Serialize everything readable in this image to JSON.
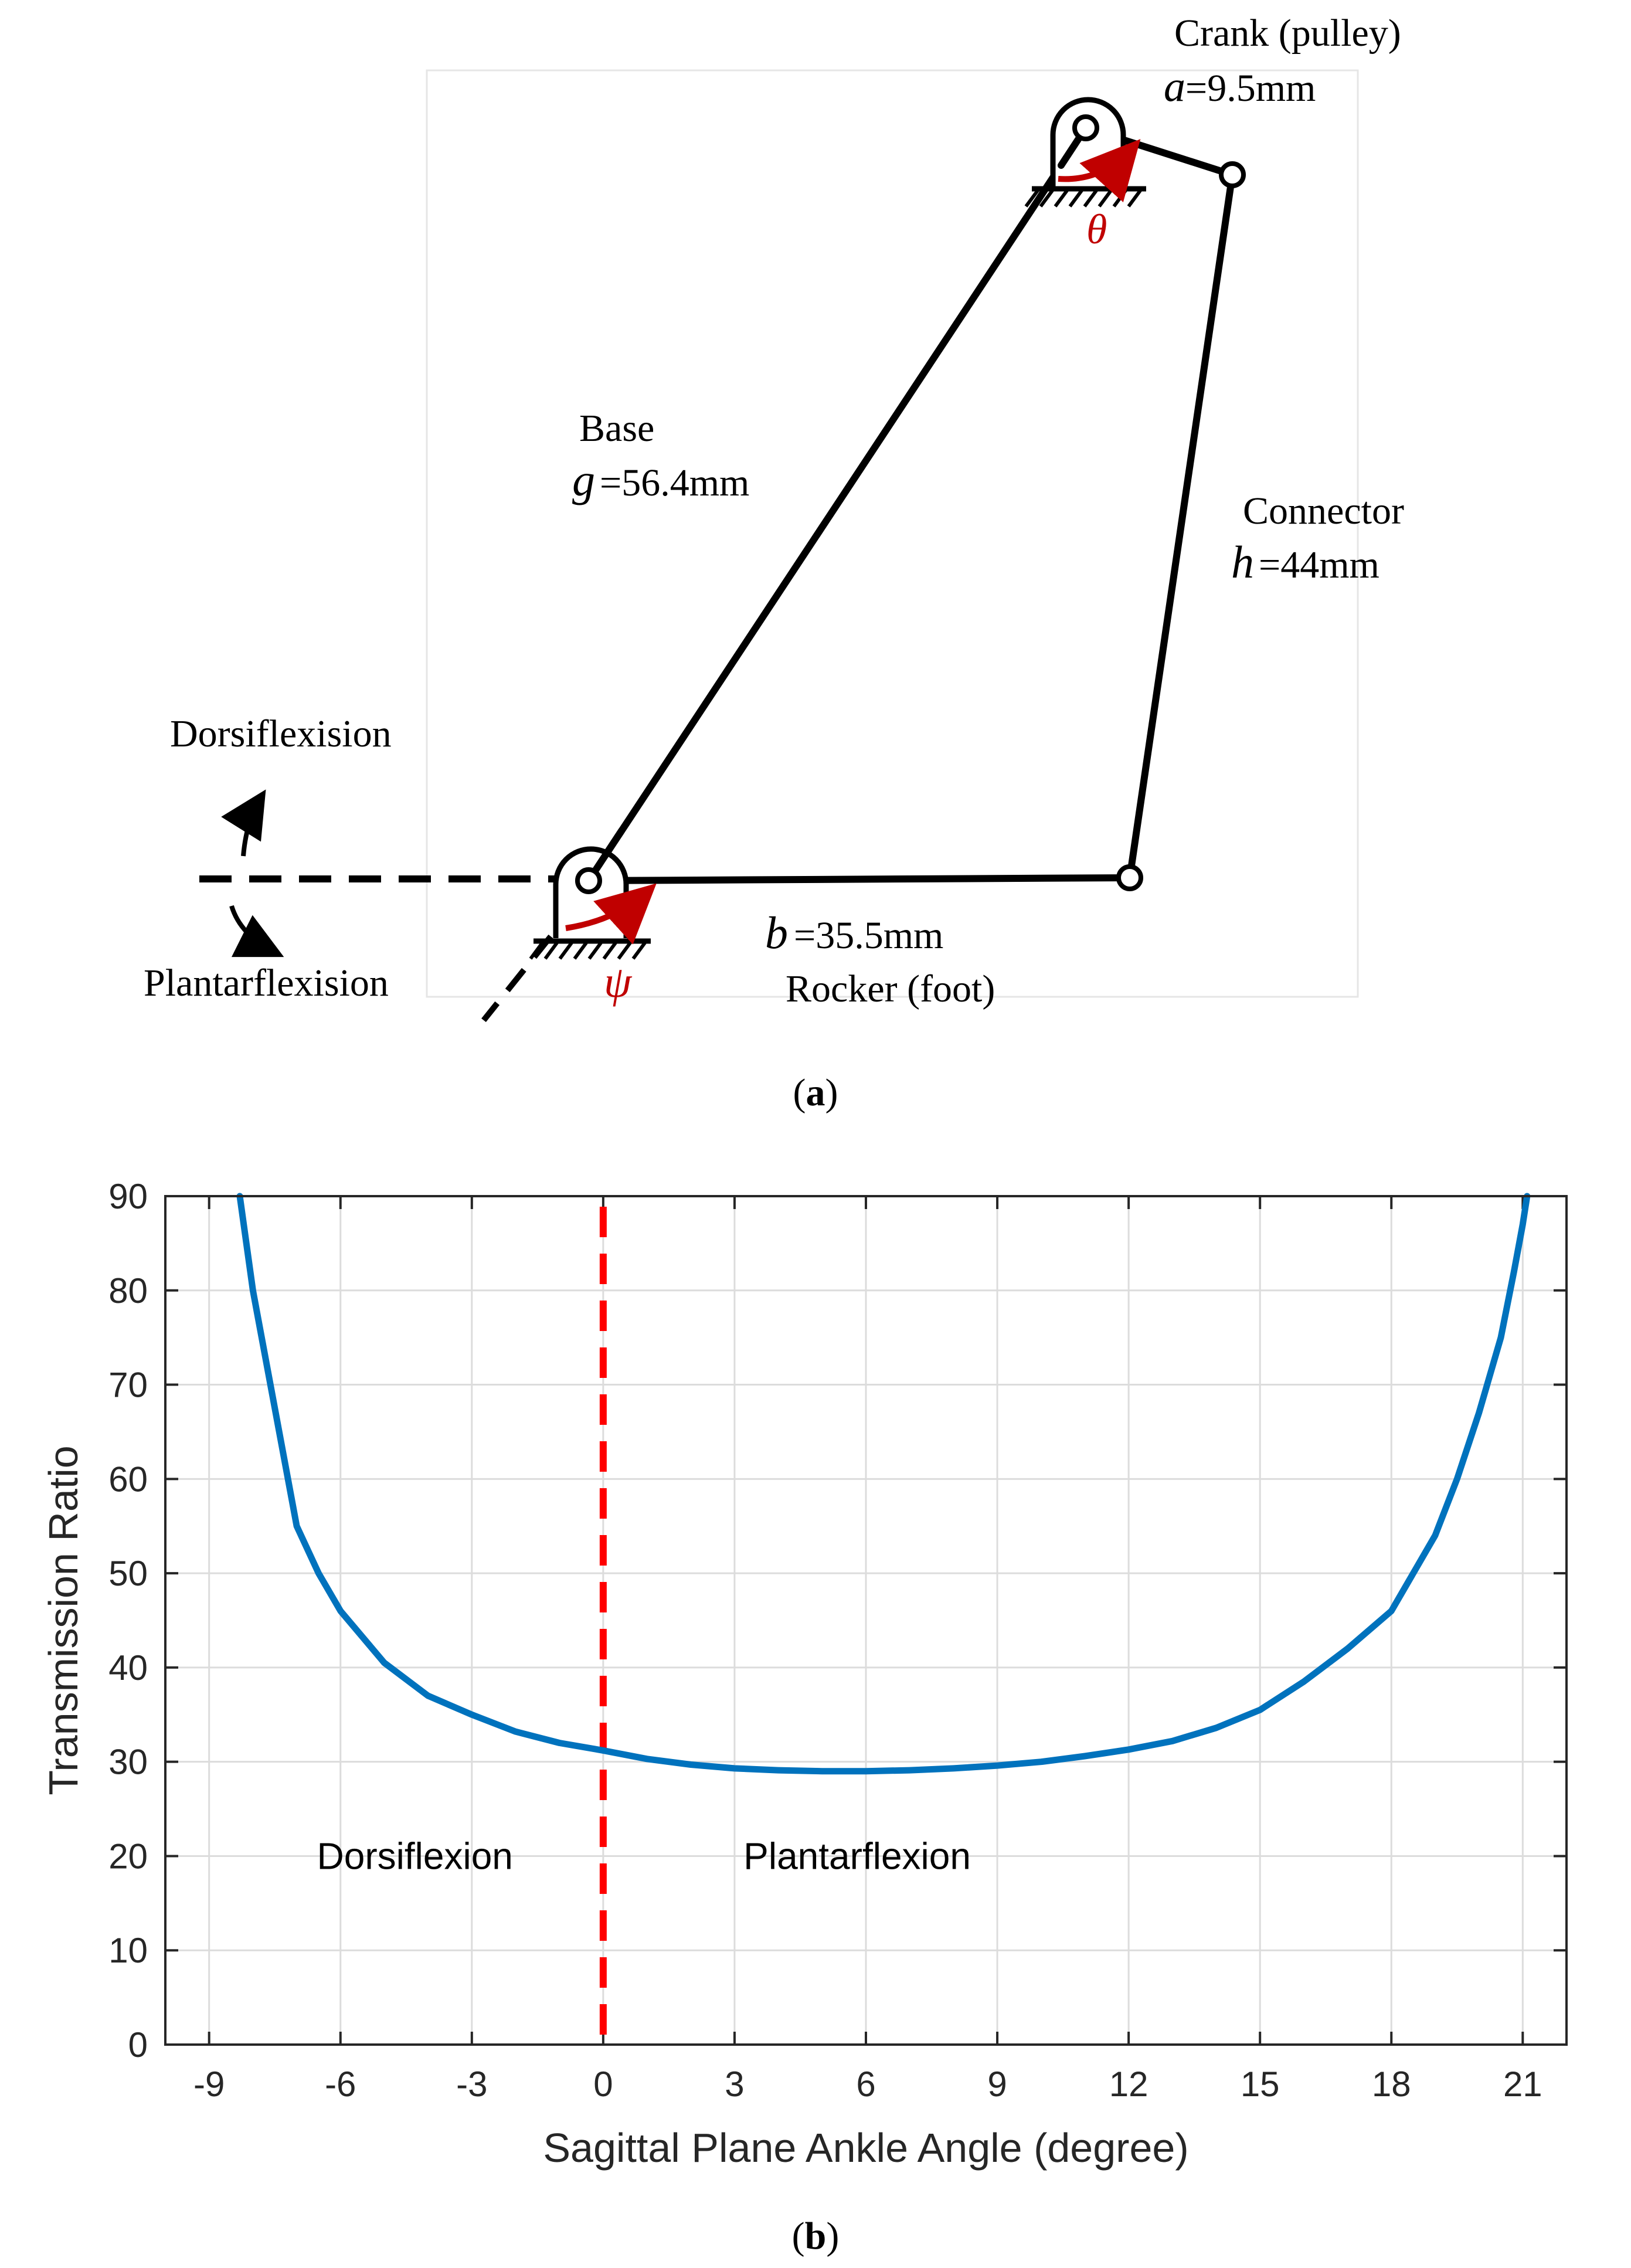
{
  "panel_a": {
    "caption_open": "(",
    "caption_letter": "a",
    "caption_close": ")",
    "crank_label": "Crank (pulley)",
    "crank_symbol": "a",
    "crank_value": "=9.5mm",
    "base_label": "Base",
    "base_symbol": "g",
    "base_value": "=56.4mm",
    "connector_label": "Connector",
    "connector_symbol": "h",
    "connector_value": "=44mm",
    "rocker_symbol": "b",
    "rocker_value": "=35.5mm",
    "rocker_label": "Rocker (foot)",
    "dorsi_label": "Dorsiflexision",
    "plantar_label": "Plantarflexision",
    "theta_symbol": "θ",
    "psi_symbol": "ψ",
    "colors": {
      "link": "#000000",
      "angle_arrow": "#c00000",
      "angle_symbol": "#c00000"
    }
  },
  "panel_b": {
    "caption_open": "(",
    "caption_letter": "b",
    "caption_close": ")",
    "region_left": "Dorsiflexion",
    "region_right": "Plantarflexion"
  },
  "chart_data": {
    "type": "line",
    "xlabel": "Sagittal Plane Ankle Angle (degree)",
    "ylabel": "Transmission Ratio",
    "xlim": [
      -10,
      22
    ],
    "ylim": [
      0,
      90
    ],
    "xticks": [
      -9,
      -6,
      -3,
      0,
      3,
      6,
      9,
      12,
      15,
      18,
      21
    ],
    "yticks": [
      0,
      10,
      20,
      30,
      40,
      50,
      60,
      70,
      80,
      90
    ],
    "grid": true,
    "series": [
      {
        "color": "#0072BD",
        "x": [
          -8.3,
          -8.0,
          -7.6,
          -7.0,
          -6.5,
          -6.0,
          -5.0,
          -4.0,
          -3.0,
          -2.0,
          -1.0,
          0,
          1,
          2,
          3,
          4,
          5,
          6,
          7,
          8,
          9,
          10,
          11,
          12,
          13,
          14,
          15,
          16,
          17,
          18,
          19,
          19.5,
          20,
          20.5,
          20.8,
          21.0,
          21.1
        ],
        "y": [
          90,
          80,
          70,
          55,
          50,
          46,
          40.5,
          37,
          35,
          33.2,
          32,
          31.2,
          30.3,
          29.7,
          29.3,
          29.1,
          29.0,
          29.0,
          29.1,
          29.3,
          29.6,
          30.0,
          30.6,
          31.3,
          32.2,
          33.6,
          35.5,
          38.5,
          42,
          46,
          54,
          60,
          67,
          75,
          82,
          87,
          90
        ]
      }
    ],
    "reference_lines": [
      {
        "x": 0,
        "color": "#ff0000",
        "style": "dashed"
      }
    ],
    "annotations": [
      {
        "text_key": "region_left",
        "x": -4.3,
        "y": 20
      },
      {
        "text_key": "region_right",
        "x": 5.8,
        "y": 20
      }
    ]
  }
}
